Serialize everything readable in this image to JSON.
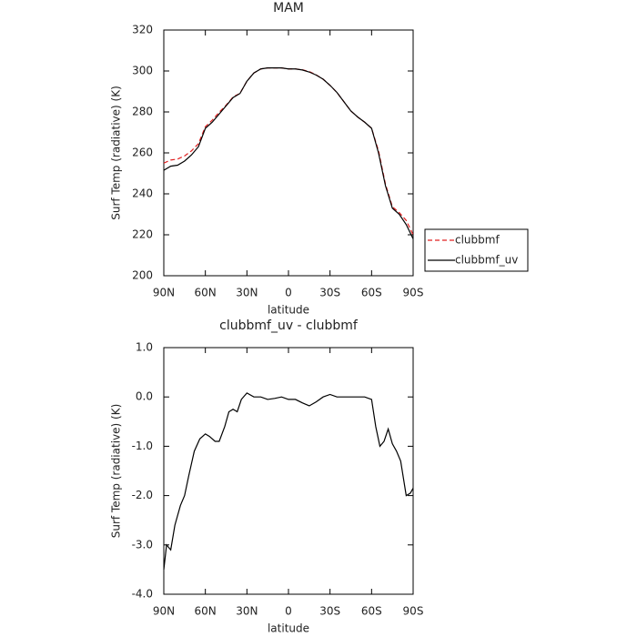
{
  "chart_data": [
    {
      "type": "line",
      "title": "MAM",
      "xlabel": "latitude",
      "ylabel": "Surf Temp (radiative) (K)",
      "x": [
        90,
        85,
        80,
        75,
        70,
        65,
        60,
        55,
        50,
        45,
        40,
        35,
        30,
        25,
        20,
        15,
        10,
        5,
        0,
        -5,
        -10,
        -15,
        -20,
        -25,
        -30,
        -35,
        -40,
        -45,
        -50,
        -55,
        -60,
        -65,
        -70,
        -75,
        -80,
        -85,
        -90
      ],
      "xlim": [
        90,
        -90
      ],
      "xticks": [
        {
          "value": 90,
          "label": "90N"
        },
        {
          "value": 60,
          "label": "60N"
        },
        {
          "value": 30,
          "label": "30N"
        },
        0,
        {
          "value": -30,
          "label": "30S"
        },
        {
          "value": -60,
          "label": "60S"
        },
        {
          "value": -90,
          "label": "90S"
        }
      ],
      "ylim": [
        200,
        320
      ],
      "yticks": [
        200,
        220,
        240,
        260,
        280,
        300,
        320
      ],
      "legend": "right",
      "series": [
        {
          "name": "clubbmf",
          "color": "#e02020",
          "dash": true,
          "values": [
            255,
            256.5,
            257,
            258.5,
            261,
            264.5,
            272.8,
            276,
            279.9,
            283.3,
            287.3,
            289.1,
            295,
            299,
            301,
            301.5,
            301.5,
            301.5,
            301,
            301,
            300.6,
            299.7,
            298.1,
            296,
            293,
            289.5,
            285,
            280.5,
            277.5,
            275,
            272,
            261,
            244.8,
            233.7,
            230.8,
            227,
            220
          ]
        },
        {
          "name": "clubbmf_uv",
          "color": "#000000",
          "dash": false,
          "values": [
            251.5,
            253.5,
            254,
            256,
            259,
            263,
            272,
            275,
            279,
            283,
            287,
            289,
            295,
            299,
            301,
            301.5,
            301.5,
            301.5,
            301,
            301,
            300.5,
            299.5,
            298,
            296,
            293,
            289.5,
            285,
            280.5,
            277.5,
            275,
            272,
            260,
            244,
            233,
            230,
            225,
            218
          ]
        }
      ]
    },
    {
      "type": "line",
      "title": "clubbmf_uv - clubbmf",
      "xlabel": "latitude",
      "ylabel": "Surf Temp (radiative) (K)",
      "x": [
        90,
        88,
        85,
        82,
        78,
        75,
        72,
        68,
        64,
        60,
        57,
        53,
        50,
        46,
        43,
        40,
        37,
        34,
        30,
        25,
        20,
        15,
        10,
        5,
        0,
        -5,
        -10,
        -15,
        -20,
        -25,
        -30,
        -35,
        -40,
        -45,
        -50,
        -55,
        -60,
        -63,
        -66,
        -69,
        -72,
        -75,
        -78,
        -81,
        -85,
        -88,
        -90
      ],
      "xlim": [
        90,
        -90
      ],
      "xticks": [
        {
          "value": 90,
          "label": "90N"
        },
        {
          "value": 60,
          "label": "60N"
        },
        {
          "value": 30,
          "label": "30N"
        },
        0,
        {
          "value": -30,
          "label": "30S"
        },
        {
          "value": -60,
          "label": "60S"
        },
        {
          "value": -90,
          "label": "90S"
        }
      ],
      "ylim": [
        -4,
        1
      ],
      "yticks": [
        {
          "value": -4,
          "label": "-4.0"
        },
        {
          "value": -3,
          "label": "-3.0"
        },
        {
          "value": -2,
          "label": "-2.0"
        },
        {
          "value": -1,
          "label": "-1.0"
        },
        {
          "value": 0,
          "label": "0.0"
        },
        {
          "value": 1,
          "label": "1.0"
        }
      ],
      "color": "#000000",
      "values": [
        -3.5,
        -3.0,
        -3.1,
        -2.6,
        -2.2,
        -2.0,
        -1.6,
        -1.1,
        -0.85,
        -0.75,
        -0.8,
        -0.9,
        -0.9,
        -0.6,
        -0.3,
        -0.25,
        -0.3,
        -0.05,
        0.08,
        0.0,
        0.0,
        -0.05,
        -0.03,
        0.0,
        -0.05,
        -0.05,
        -0.12,
        -0.18,
        -0.1,
        0.0,
        0.05,
        0.0,
        0.0,
        0.0,
        0.0,
        0.0,
        -0.05,
        -0.6,
        -1.0,
        -0.9,
        -0.65,
        -0.95,
        -1.1,
        -1.3,
        -2.0,
        -1.95,
        -1.85
      ]
    }
  ]
}
